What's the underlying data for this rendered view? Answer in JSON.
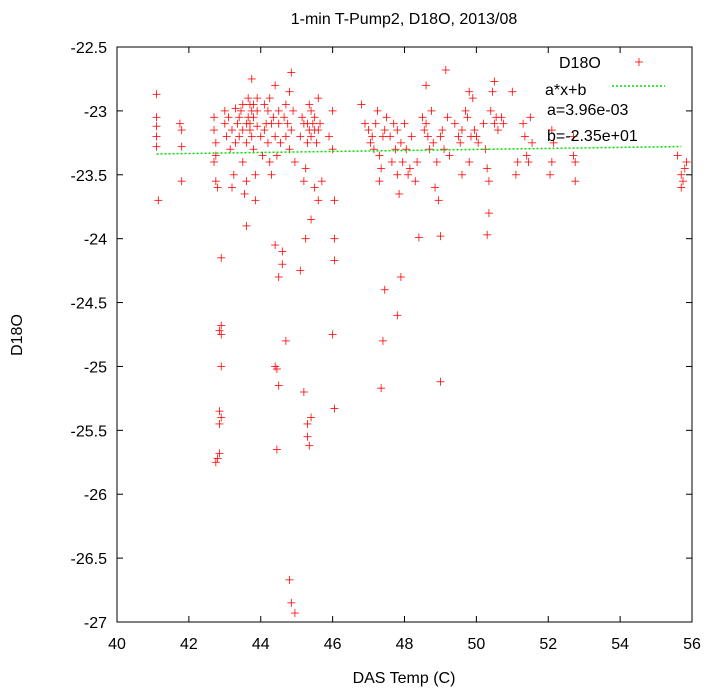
{
  "chart_data": {
    "type": "scatter",
    "title": "1-min T-Pump2, D18O, 2013/08",
    "xlabel": "DAS Temp (C)",
    "ylabel": "D18O",
    "xlim": [
      40,
      56
    ],
    "ylim": [
      -27,
      -22.5
    ],
    "x_ticks": [
      40,
      42,
      44,
      46,
      48,
      50,
      52,
      54,
      56
    ],
    "y_ticks": [
      -22.5,
      -23,
      -23.5,
      -24,
      -24.5,
      -25,
      -25.5,
      -26,
      -26.5,
      -27
    ],
    "grid": false,
    "legend_position": "top-right",
    "annotations": [
      "a=3.96e-03",
      "b=-2.35e+01"
    ],
    "series": [
      {
        "name": "D18O",
        "kind": "points",
        "marker": "+",
        "color": "#ff0000",
        "points": [
          [
            41.1,
            -22.87
          ],
          [
            41.1,
            -23.05
          ],
          [
            41.1,
            -23.12
          ],
          [
            41.1,
            -23.2
          ],
          [
            41.1,
            -23.28
          ],
          [
            41.15,
            -23.7
          ],
          [
            41.8,
            -23.15
          ],
          [
            41.8,
            -23.28
          ],
          [
            41.8,
            -23.55
          ],
          [
            41.75,
            -23.1
          ],
          [
            42.7,
            -23.05
          ],
          [
            42.7,
            -23.15
          ],
          [
            42.75,
            -23.25
          ],
          [
            42.7,
            -23.4
          ],
          [
            42.75,
            -23.55
          ],
          [
            42.8,
            -23.6
          ],
          [
            42.75,
            -23.35
          ],
          [
            42.75,
            -25.75
          ],
          [
            42.8,
            -25.72
          ],
          [
            42.85,
            -25.68
          ],
          [
            42.85,
            -25.45
          ],
          [
            42.9,
            -25.4
          ],
          [
            42.85,
            -25.35
          ],
          [
            42.9,
            -25.0
          ],
          [
            42.9,
            -24.75
          ],
          [
            42.85,
            -24.72
          ],
          [
            42.9,
            -24.68
          ],
          [
            42.9,
            -24.15
          ],
          [
            43.0,
            -23.0
          ],
          [
            43.0,
            -23.1
          ],
          [
            43.05,
            -23.2
          ],
          [
            43.1,
            -23.05
          ],
          [
            43.15,
            -23.3
          ],
          [
            43.2,
            -23.15
          ],
          [
            43.2,
            -23.6
          ],
          [
            43.25,
            -23.5
          ],
          [
            43.3,
            -23.25
          ],
          [
            43.3,
            -22.98
          ],
          [
            43.35,
            -23.1
          ],
          [
            43.4,
            -23.05
          ],
          [
            43.4,
            -23.2
          ],
          [
            43.45,
            -23.0
          ],
          [
            43.5,
            -23.15
          ],
          [
            43.5,
            -22.95
          ],
          [
            43.5,
            -23.4
          ],
          [
            43.55,
            -23.65
          ],
          [
            43.6,
            -23.1
          ],
          [
            43.6,
            -23.25
          ],
          [
            43.6,
            -23.55
          ],
          [
            43.65,
            -22.9
          ],
          [
            43.65,
            -23.05
          ],
          [
            43.7,
            -22.95
          ],
          [
            43.7,
            -23.1
          ],
          [
            43.7,
            -23.15
          ],
          [
            43.75,
            -22.75
          ],
          [
            43.75,
            -23.0
          ],
          [
            43.75,
            -23.2
          ],
          [
            43.8,
            -23.05
          ],
          [
            43.8,
            -22.95
          ],
          [
            43.8,
            -23.3
          ],
          [
            43.85,
            -23.5
          ],
          [
            43.85,
            -23.7
          ],
          [
            43.9,
            -23.12
          ],
          [
            43.9,
            -23.0
          ],
          [
            43.9,
            -22.9
          ],
          [
            43.6,
            -23.9
          ],
          [
            44.0,
            -23.2
          ],
          [
            44.05,
            -23.35
          ],
          [
            44.1,
            -23.15
          ],
          [
            44.1,
            -22.95
          ],
          [
            44.15,
            -23.1
          ],
          [
            44.2,
            -23.0
          ],
          [
            44.2,
            -23.25
          ],
          [
            44.25,
            -23.4
          ],
          [
            44.25,
            -22.9
          ],
          [
            44.3,
            -23.1
          ],
          [
            44.3,
            -23.5
          ],
          [
            44.35,
            -23.05
          ],
          [
            44.4,
            -23.2
          ],
          [
            44.4,
            -22.8
          ],
          [
            44.45,
            -23.35
          ],
          [
            44.5,
            -23.1
          ],
          [
            44.5,
            -23.0
          ],
          [
            44.55,
            -23.25
          ],
          [
            44.4,
            -24.05
          ],
          [
            44.5,
            -24.3
          ],
          [
            44.6,
            -24.1
          ],
          [
            44.6,
            -24.2
          ],
          [
            44.65,
            -23.05
          ],
          [
            44.7,
            -23.2
          ],
          [
            44.7,
            -22.95
          ],
          [
            44.75,
            -23.1
          ],
          [
            44.8,
            -22.85
          ],
          [
            44.8,
            -23.3
          ],
          [
            44.85,
            -22.7
          ],
          [
            44.85,
            -23.15
          ],
          [
            44.9,
            -23.0
          ],
          [
            44.95,
            -23.4
          ],
          [
            44.4,
            -25.0
          ],
          [
            44.45,
            -25.02
          ],
          [
            44.5,
            -25.15
          ],
          [
            44.7,
            -24.8
          ],
          [
            44.45,
            -25.65
          ],
          [
            44.8,
            -26.67
          ],
          [
            44.85,
            -26.85
          ],
          [
            44.95,
            -26.93
          ],
          [
            45.1,
            -23.2
          ],
          [
            45.15,
            -23.05
          ],
          [
            45.2,
            -23.1
          ],
          [
            45.2,
            -23.55
          ],
          [
            45.25,
            -23.45
          ],
          [
            45.3,
            -23.1
          ],
          [
            45.3,
            -23.25
          ],
          [
            45.35,
            -22.95
          ],
          [
            45.35,
            -23.15
          ],
          [
            45.4,
            -23.0
          ],
          [
            45.4,
            -23.2
          ],
          [
            45.45,
            -23.1
          ],
          [
            45.5,
            -23.05
          ],
          [
            45.5,
            -23.15
          ],
          [
            45.55,
            -23.25
          ],
          [
            45.6,
            -22.9
          ],
          [
            45.6,
            -23.15
          ],
          [
            45.65,
            -23.1
          ],
          [
            45.5,
            -23.6
          ],
          [
            45.6,
            -23.7
          ],
          [
            45.7,
            -23.55
          ],
          [
            45.1,
            -24.25
          ],
          [
            45.25,
            -24.0
          ],
          [
            45.4,
            -23.85
          ],
          [
            45.2,
            -25.2
          ],
          [
            45.3,
            -25.45
          ],
          [
            45.3,
            -25.55
          ],
          [
            45.35,
            -25.62
          ],
          [
            45.4,
            -25.4
          ],
          [
            46.0,
            -23.0
          ],
          [
            46.0,
            -23.3
          ],
          [
            46.05,
            -23.7
          ],
          [
            46.05,
            -24.0
          ],
          [
            46.05,
            -24.17
          ],
          [
            46.0,
            -24.75
          ],
          [
            46.05,
            -25.33
          ],
          [
            45.9,
            -23.2
          ],
          [
            46.8,
            -22.95
          ],
          [
            46.9,
            -23.1
          ],
          [
            47.0,
            -23.15
          ],
          [
            47.05,
            -23.25
          ],
          [
            47.1,
            -23.2
          ],
          [
            47.15,
            -23.3
          ],
          [
            47.2,
            -23.1
          ],
          [
            47.25,
            -23.0
          ],
          [
            47.3,
            -23.35
          ],
          [
            47.35,
            -23.45
          ],
          [
            47.4,
            -23.2
          ],
          [
            47.45,
            -23.15
          ],
          [
            47.3,
            -23.55
          ],
          [
            47.45,
            -24.4
          ],
          [
            47.4,
            -24.8
          ],
          [
            47.35,
            -25.17
          ],
          [
            47.5,
            -23.05
          ],
          [
            47.6,
            -23.2
          ],
          [
            47.65,
            -23.4
          ],
          [
            47.7,
            -23.1
          ],
          [
            47.75,
            -23.3
          ],
          [
            47.8,
            -23.5
          ],
          [
            47.8,
            -23.15
          ],
          [
            47.85,
            -23.65
          ],
          [
            47.9,
            -23.25
          ],
          [
            47.95,
            -23.4
          ],
          [
            47.9,
            -24.3
          ],
          [
            47.8,
            -24.6
          ],
          [
            48.0,
            -23.1
          ],
          [
            48.05,
            -23.3
          ],
          [
            48.1,
            -23.5
          ],
          [
            48.15,
            -23.45
          ],
          [
            48.2,
            -23.2
          ],
          [
            48.3,
            -23.55
          ],
          [
            48.35,
            -23.4
          ],
          [
            48.4,
            -23.99
          ],
          [
            48.5,
            -23.05
          ],
          [
            48.55,
            -23.15
          ],
          [
            48.6,
            -23.1
          ],
          [
            48.65,
            -23.2
          ],
          [
            48.7,
            -23.3
          ],
          [
            48.75,
            -23.0
          ],
          [
            48.6,
            -22.8
          ],
          [
            48.8,
            -23.25
          ],
          [
            48.85,
            -23.6
          ],
          [
            48.9,
            -23.4
          ],
          [
            48.95,
            -23.7
          ],
          [
            49.0,
            -23.2
          ],
          [
            49.05,
            -23.15
          ],
          [
            49.1,
            -23.3
          ],
          [
            49.15,
            -22.68
          ],
          [
            49.2,
            -23.05
          ],
          [
            49.25,
            -23.35
          ],
          [
            49.0,
            -23.98
          ],
          [
            49.0,
            -25.12
          ],
          [
            49.4,
            -23.1
          ],
          [
            49.5,
            -23.2
          ],
          [
            49.55,
            -23.25
          ],
          [
            49.6,
            -23.15
          ],
          [
            49.7,
            -23.0
          ],
          [
            49.75,
            -23.05
          ],
          [
            49.8,
            -22.85
          ],
          [
            49.85,
            -23.2
          ],
          [
            49.9,
            -22.9
          ],
          [
            49.95,
            -23.15
          ],
          [
            50.0,
            -23.2
          ],
          [
            50.05,
            -23.25
          ],
          [
            49.6,
            -23.5
          ],
          [
            49.8,
            -23.4
          ],
          [
            50.2,
            -23.1
          ],
          [
            50.25,
            -23.3
          ],
          [
            50.3,
            -23.45
          ],
          [
            50.35,
            -23.55
          ],
          [
            50.4,
            -23.0
          ],
          [
            50.45,
            -22.85
          ],
          [
            50.5,
            -22.77
          ],
          [
            50.5,
            -23.1
          ],
          [
            50.55,
            -23.05
          ],
          [
            50.6,
            -23.15
          ],
          [
            50.7,
            -23.05
          ],
          [
            50.75,
            -23.1
          ],
          [
            50.35,
            -23.8
          ],
          [
            50.3,
            -23.97
          ],
          [
            51.3,
            -23.1
          ],
          [
            51.35,
            -23.2
          ],
          [
            51.4,
            -23.35
          ],
          [
            51.45,
            -23.4
          ],
          [
            51.5,
            -23.05
          ],
          [
            51.55,
            -23.25
          ],
          [
            51.1,
            -23.5
          ],
          [
            51.15,
            -23.4
          ],
          [
            51.0,
            -22.85
          ],
          [
            52.1,
            -23.15
          ],
          [
            52.15,
            -23.25
          ],
          [
            52.1,
            -23.4
          ],
          [
            52.05,
            -23.5
          ],
          [
            52.7,
            -23.35
          ],
          [
            52.75,
            -23.4
          ],
          [
            52.75,
            -23.55
          ],
          [
            52.7,
            -23.2
          ],
          [
            55.7,
            -23.5
          ],
          [
            55.75,
            -23.55
          ],
          [
            55.8,
            -23.45
          ],
          [
            55.85,
            -23.4
          ],
          [
            55.7,
            -23.6
          ],
          [
            55.6,
            -23.35
          ]
        ]
      },
      {
        "name": "a*x+b",
        "kind": "line",
        "style": "dashed",
        "color": "#00dd00",
        "x": [
          41.1,
          55.7
        ],
        "y": [
          -23.337,
          -23.279
        ]
      }
    ]
  }
}
